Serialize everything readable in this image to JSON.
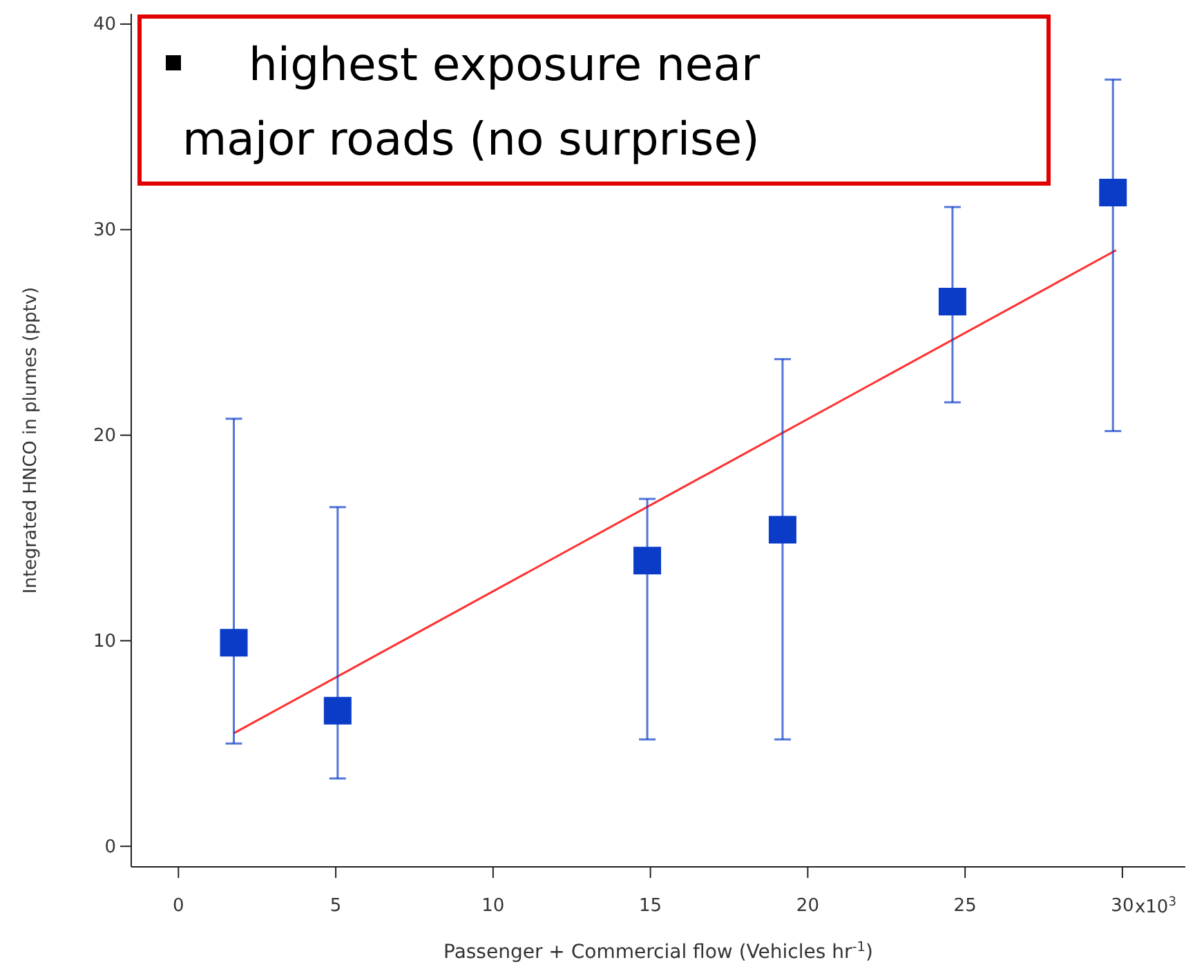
{
  "chart_data": {
    "type": "scatter",
    "xlabel": "Passenger + Commercial flow (Vehicles hr$^{-1}$)",
    "ylabel": "Integrated HNCO in plumes (pptv)",
    "annotations": [
      "highest exposure near major roads (no surprise)",
      "x10$^{3}$"
    ],
    "xlim": [
      -1.5,
      32
    ],
    "ylim": [
      -1,
      40.5
    ],
    "xticks": [
      0,
      5,
      10,
      15,
      20,
      25,
      30
    ],
    "yticks": [
      0,
      10,
      20,
      30,
      40
    ],
    "series": [
      {
        "color": "#0a3cc8",
        "marker": "square",
        "x": [
          1.76,
          5.06,
          14.9,
          19.2,
          24.6,
          29.7
        ],
        "values": [
          9.9,
          6.6,
          13.9,
          15.4,
          26.5,
          31.8
        ],
        "errors": [
          [
            5.0,
            20.8
          ],
          [
            3.3,
            16.5
          ],
          [
            5.2,
            16.9
          ],
          [
            5.2,
            23.7
          ],
          [
            21.6,
            31.1
          ],
          [
            20.2,
            37.3
          ]
        ]
      },
      {
        "type": "line",
        "color": "#ff3030",
        "x": [
          1.76,
          29.8
        ],
        "values": [
          5.5,
          29.0
        ]
      }
    ]
  }
}
